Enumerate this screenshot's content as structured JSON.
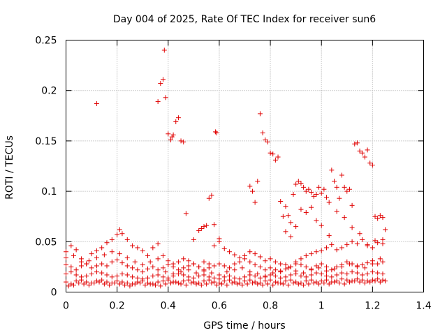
{
  "chart_data": {
    "type": "scatter",
    "title": "Day 004 of 2025, Rate Of TEC Index for receiver sun6",
    "xlabel": "GPS time / hours",
    "ylabel": "ROTI / TECUs",
    "xlim": [
      0,
      1.4
    ],
    "ylim": [
      0,
      0.25
    ],
    "xticks": [
      "0",
      "0.2",
      "0.4",
      "0.6",
      "0.8",
      "1",
      "1.2",
      "1.4"
    ],
    "yticks": [
      "0",
      "0.05",
      "0.1",
      "0.15",
      "0.2",
      "0.25"
    ],
    "grid": true,
    "marker": "+",
    "marker_color": "#e00000",
    "series": [
      {
        "x": [
          0.12,
          0.36,
          0.37,
          0.38,
          0.385,
          0.39,
          0.4,
          0.41,
          0.415,
          0.42,
          0.43,
          0.44,
          0.45,
          0.46,
          0.47,
          0.5,
          0.52,
          0.53,
          0.54,
          0.55,
          0.56,
          0.57,
          0.58,
          0.585,
          0.59,
          0.6,
          0.72,
          0.73,
          0.74,
          0.75,
          0.76,
          0.77,
          0.78,
          0.79,
          0.8,
          0.81,
          0.82,
          0.83,
          0.84,
          0.85,
          0.86,
          0.87,
          0.88,
          0.89,
          0.9,
          0.91,
          0.92,
          0.93,
          0.94,
          0.95,
          0.96,
          0.97,
          0.98,
          0.99,
          1.0,
          1.01,
          1.02,
          1.03,
          1.04,
          1.05,
          1.06,
          1.07,
          1.08,
          1.09,
          1.1,
          1.11,
          1.12,
          1.13,
          1.14,
          1.15,
          1.16,
          1.17,
          1.18,
          1.19,
          1.2,
          1.21,
          1.22,
          1.23,
          1.24,
          1.25,
          0.86,
          0.88,
          0.9,
          0.92,
          0.94,
          0.96,
          0.98,
          1.0,
          1.03,
          1.06,
          1.09,
          1.12,
          1.15,
          1.18,
          1.21,
          1.24
        ],
        "y": [
          0.187,
          0.189,
          0.207,
          0.211,
          0.24,
          0.193,
          0.157,
          0.151,
          0.154,
          0.156,
          0.169,
          0.173,
          0.15,
          0.149,
          0.078,
          0.052,
          0.061,
          0.063,
          0.065,
          0.066,
          0.093,
          0.096,
          0.067,
          0.159,
          0.158,
          0.053,
          0.105,
          0.1,
          0.089,
          0.11,
          0.177,
          0.158,
          0.151,
          0.149,
          0.138,
          0.137,
          0.131,
          0.134,
          0.09,
          0.075,
          0.085,
          0.076,
          0.069,
          0.097,
          0.107,
          0.11,
          0.108,
          0.104,
          0.1,
          0.102,
          0.099,
          0.095,
          0.097,
          0.104,
          0.098,
          0.102,
          0.094,
          0.089,
          0.121,
          0.11,
          0.104,
          0.093,
          0.116,
          0.104,
          0.1,
          0.102,
          0.086,
          0.147,
          0.148,
          0.14,
          0.138,
          0.134,
          0.141,
          0.128,
          0.126,
          0.075,
          0.073,
          0.076,
          0.074,
          0.062,
          0.06,
          0.055,
          0.065,
          0.082,
          0.079,
          0.084,
          0.071,
          0.066,
          0.056,
          0.08,
          0.074,
          0.064,
          0.058,
          0.047,
          0.051,
          0.048
        ]
      },
      {
        "x": [
          0.0,
          0.02,
          0.04,
          0.06,
          0.08,
          0.1,
          0.12,
          0.14,
          0.16,
          0.18,
          0.2,
          0.21,
          0.22,
          0.24,
          0.26,
          0.28,
          0.3,
          0.32,
          0.34,
          0.36,
          0.38,
          0.4,
          0.42,
          0.44,
          0.46,
          0.48,
          0.5,
          0.52,
          0.54,
          0.56,
          0.58,
          0.6,
          0.62,
          0.64,
          0.66,
          0.68,
          0.7,
          0.72,
          0.74,
          0.76,
          0.78,
          0.8,
          0.82,
          0.84,
          0.86,
          0.88,
          0.9,
          0.92,
          0.94,
          0.96,
          0.98,
          1.0,
          1.02,
          1.04,
          1.06,
          1.08,
          1.1,
          1.12,
          1.14,
          1.16,
          1.18,
          1.2,
          1.22,
          1.24
        ],
        "y": [
          0.04,
          0.046,
          0.042,
          0.033,
          0.028,
          0.038,
          0.041,
          0.044,
          0.049,
          0.052,
          0.057,
          0.062,
          0.058,
          0.052,
          0.046,
          0.044,
          0.041,
          0.036,
          0.044,
          0.048,
          0.036,
          0.031,
          0.028,
          0.03,
          0.033,
          0.031,
          0.028,
          0.025,
          0.03,
          0.028,
          0.046,
          0.05,
          0.043,
          0.04,
          0.037,
          0.034,
          0.036,
          0.04,
          0.038,
          0.035,
          0.031,
          0.033,
          0.03,
          0.028,
          0.027,
          0.025,
          0.03,
          0.033,
          0.036,
          0.038,
          0.04,
          0.041,
          0.044,
          0.047,
          0.042,
          0.044,
          0.047,
          0.05,
          0.048,
          0.052,
          0.046,
          0.044,
          0.049,
          0.052
        ]
      },
      {
        "x": [
          0.0,
          0.02,
          0.04,
          0.06,
          0.08,
          0.1,
          0.12,
          0.14,
          0.16,
          0.18,
          0.2,
          0.22,
          0.24,
          0.26,
          0.28,
          0.3,
          0.32,
          0.34,
          0.36,
          0.38,
          0.4,
          0.42,
          0.44,
          0.46,
          0.48,
          0.5,
          0.52,
          0.54,
          0.56,
          0.58,
          0.6,
          0.62,
          0.64,
          0.66,
          0.68,
          0.7,
          0.72,
          0.74,
          0.76,
          0.78,
          0.8,
          0.82,
          0.84,
          0.86,
          0.88,
          0.9,
          0.92,
          0.94,
          0.96,
          0.98,
          1.0,
          1.02,
          1.04,
          1.06,
          1.08,
          1.1,
          1.12,
          1.14,
          1.16,
          1.18,
          1.2,
          1.22,
          1.24
        ],
        "y": [
          0.027,
          0.025,
          0.022,
          0.026,
          0.028,
          0.024,
          0.026,
          0.028,
          0.026,
          0.03,
          0.032,
          0.029,
          0.026,
          0.024,
          0.022,
          0.02,
          0.023,
          0.025,
          0.022,
          0.024,
          0.027,
          0.025,
          0.022,
          0.024,
          0.026,
          0.028,
          0.025,
          0.022,
          0.024,
          0.026,
          0.028,
          0.026,
          0.024,
          0.028,
          0.03,
          0.033,
          0.03,
          0.027,
          0.025,
          0.022,
          0.024,
          0.022,
          0.02,
          0.023,
          0.025,
          0.028,
          0.027,
          0.025,
          0.023,
          0.026,
          0.028,
          0.025,
          0.022,
          0.025,
          0.027,
          0.03,
          0.028,
          0.025,
          0.027,
          0.029,
          0.031,
          0.028,
          0.03
        ]
      },
      {
        "x": [
          0.0,
          0.02,
          0.04,
          0.06,
          0.08,
          0.1,
          0.12,
          0.14,
          0.16,
          0.18,
          0.2,
          0.22,
          0.24,
          0.26,
          0.28,
          0.3,
          0.32,
          0.34,
          0.36,
          0.38,
          0.4,
          0.42,
          0.44,
          0.46,
          0.48,
          0.5,
          0.52,
          0.54,
          0.56,
          0.58,
          0.6,
          0.62,
          0.64,
          0.66,
          0.68,
          0.7,
          0.72,
          0.74,
          0.76,
          0.78,
          0.8,
          0.82,
          0.84,
          0.86,
          0.88,
          0.9,
          0.92,
          0.94,
          0.96,
          0.98,
          1.0,
          1.02,
          1.04,
          1.06,
          1.08,
          1.1,
          1.12,
          1.14,
          1.16,
          1.18,
          1.2,
          1.22,
          1.24
        ],
        "y": [
          0.018,
          0.02,
          0.017,
          0.015,
          0.016,
          0.018,
          0.02,
          0.019,
          0.017,
          0.015,
          0.016,
          0.018,
          0.017,
          0.015,
          0.014,
          0.013,
          0.014,
          0.016,
          0.017,
          0.015,
          0.014,
          0.016,
          0.018,
          0.017,
          0.015,
          0.014,
          0.016,
          0.017,
          0.015,
          0.014,
          0.013,
          0.015,
          0.016,
          0.014,
          0.013,
          0.015,
          0.017,
          0.016,
          0.014,
          0.015,
          0.017,
          0.016,
          0.014,
          0.015,
          0.017,
          0.018,
          0.016,
          0.015,
          0.017,
          0.019,
          0.018,
          0.016,
          0.015,
          0.017,
          0.019,
          0.018,
          0.02,
          0.019,
          0.017,
          0.018,
          0.02,
          0.019,
          0.018
        ]
      },
      {
        "x": [
          0.0,
          0.02,
          0.04,
          0.06,
          0.08,
          0.1,
          0.12,
          0.14,
          0.16,
          0.18,
          0.2,
          0.22,
          0.24,
          0.26,
          0.28,
          0.3,
          0.32,
          0.34,
          0.36,
          0.38,
          0.4,
          0.42,
          0.44,
          0.46,
          0.48,
          0.5,
          0.52,
          0.54,
          0.56,
          0.58,
          0.6,
          0.62,
          0.64,
          0.66,
          0.68,
          0.7,
          0.72,
          0.74,
          0.76,
          0.78,
          0.8,
          0.82,
          0.84,
          0.86,
          0.88,
          0.9,
          0.92,
          0.94,
          0.96,
          0.98,
          1.0,
          1.02,
          1.04,
          1.06,
          1.08,
          1.1,
          1.12,
          1.14,
          1.16,
          1.18,
          1.2,
          1.22,
          1.24
        ],
        "y": [
          0.01,
          0.008,
          0.011,
          0.012,
          0.01,
          0.009,
          0.011,
          0.012,
          0.01,
          0.009,
          0.011,
          0.01,
          0.009,
          0.008,
          0.01,
          0.011,
          0.009,
          0.008,
          0.01,
          0.011,
          0.012,
          0.01,
          0.009,
          0.011,
          0.012,
          0.01,
          0.009,
          0.011,
          0.012,
          0.01,
          0.009,
          0.011,
          0.012,
          0.01,
          0.009,
          0.011,
          0.012,
          0.01,
          0.009,
          0.011,
          0.012,
          0.01,
          0.009,
          0.011,
          0.012,
          0.01,
          0.009,
          0.011,
          0.012,
          0.01,
          0.011,
          0.012,
          0.01,
          0.011,
          0.013,
          0.012,
          0.011,
          0.013,
          0.012,
          0.011,
          0.012,
          0.013,
          0.012
        ]
      },
      {
        "x": [
          0.01,
          0.03,
          0.05,
          0.07,
          0.09,
          0.11,
          0.13,
          0.15,
          0.17,
          0.19,
          0.21,
          0.23,
          0.25,
          0.27,
          0.29,
          0.31,
          0.33,
          0.35,
          0.37,
          0.39,
          0.41,
          0.43,
          0.45,
          0.47,
          0.49,
          0.51,
          0.53,
          0.55,
          0.57,
          0.59,
          0.61,
          0.63,
          0.65,
          0.67,
          0.69,
          0.71,
          0.73,
          0.75,
          0.77,
          0.79,
          0.81,
          0.83,
          0.85,
          0.87,
          0.89,
          0.91,
          0.93,
          0.95,
          0.97,
          0.99,
          1.01,
          1.03,
          1.05,
          1.07,
          1.09,
          1.11,
          1.13,
          1.15,
          1.17,
          1.19,
          1.21,
          1.23,
          1.25
        ],
        "y": [
          0.006,
          0.007,
          0.009,
          0.008,
          0.007,
          0.009,
          0.01,
          0.008,
          0.007,
          0.009,
          0.008,
          0.007,
          0.006,
          0.008,
          0.009,
          0.007,
          0.008,
          0.007,
          0.006,
          0.008,
          0.009,
          0.01,
          0.008,
          0.007,
          0.009,
          0.008,
          0.007,
          0.008,
          0.009,
          0.007,
          0.008,
          0.007,
          0.009,
          0.008,
          0.007,
          0.008,
          0.009,
          0.008,
          0.007,
          0.008,
          0.007,
          0.009,
          0.008,
          0.007,
          0.009,
          0.008,
          0.007,
          0.008,
          0.009,
          0.008,
          0.009,
          0.008,
          0.01,
          0.009,
          0.008,
          0.01,
          0.011,
          0.01,
          0.009,
          0.01,
          0.011,
          0.01,
          0.011
        ]
      },
      {
        "x": [
          0.0,
          0.03,
          0.06,
          0.09,
          0.12,
          0.15,
          0.18,
          0.21,
          0.24,
          0.27,
          0.3,
          0.33,
          0.36,
          0.39,
          0.42,
          0.45,
          0.48,
          0.51,
          0.54,
          0.57,
          0.6,
          0.63,
          0.66,
          0.69,
          0.72,
          0.75,
          0.78,
          0.81,
          0.84,
          0.87,
          0.9,
          0.93,
          0.96,
          0.99,
          1.02,
          1.05,
          1.08,
          1.11,
          1.14,
          1.17,
          1.2,
          1.23
        ],
        "y": [
          0.034,
          0.036,
          0.03,
          0.031,
          0.034,
          0.037,
          0.04,
          0.038,
          0.034,
          0.03,
          0.027,
          0.03,
          0.033,
          0.02,
          0.018,
          0.02,
          0.022,
          0.019,
          0.021,
          0.019,
          0.017,
          0.02,
          0.022,
          0.024,
          0.02,
          0.018,
          0.016,
          0.019,
          0.021,
          0.024,
          0.021,
          0.019,
          0.022,
          0.024,
          0.021,
          0.023,
          0.025,
          0.028,
          0.026,
          0.024,
          0.028,
          0.033
        ]
      }
    ]
  }
}
